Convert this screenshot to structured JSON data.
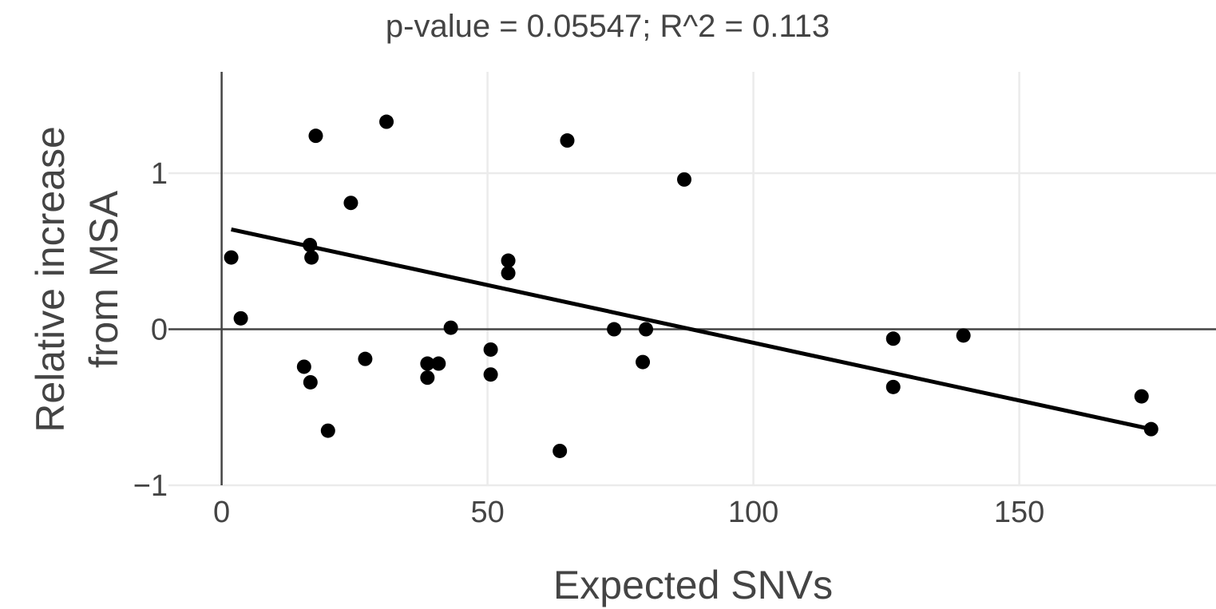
{
  "chart_data": {
    "type": "scatter",
    "title": "p-value = 0.05547; R^2 = 0.113",
    "xlabel": "Expected SNVs",
    "ylabel_lines": [
      "Relative increase",
      "from MSA"
    ],
    "xlim": [
      -10,
      187
    ],
    "ylim": [
      -1.0,
      1.65
    ],
    "x_ticks": [
      0,
      50,
      100,
      150
    ],
    "x_tick_labels": [
      "0",
      "50",
      "100",
      "150"
    ],
    "y_ticks": [
      -1,
      0,
      1
    ],
    "y_tick_labels": [
      "−1",
      "0",
      "1"
    ],
    "grid": true,
    "legend": "none",
    "colors": {
      "points": "#000000",
      "grid": "#ebebeb",
      "axis": "#444444",
      "fit": "#000000"
    },
    "points": [
      {
        "x": 1.8,
        "y": 0.46
      },
      {
        "x": 3.6,
        "y": 0.07
      },
      {
        "x": 15.5,
        "y": -0.24
      },
      {
        "x": 16.6,
        "y": 0.54
      },
      {
        "x": 16.7,
        "y": -0.34
      },
      {
        "x": 16.9,
        "y": 0.46
      },
      {
        "x": 17.7,
        "y": 1.24
      },
      {
        "x": 20.0,
        "y": -0.65
      },
      {
        "x": 24.3,
        "y": 0.81
      },
      {
        "x": 27.0,
        "y": -0.19
      },
      {
        "x": 31.0,
        "y": 1.33
      },
      {
        "x": 38.7,
        "y": -0.22
      },
      {
        "x": 38.7,
        "y": -0.31
      },
      {
        "x": 40.8,
        "y": -0.22
      },
      {
        "x": 43.1,
        "y": 0.01
      },
      {
        "x": 50.6,
        "y": -0.13
      },
      {
        "x": 50.6,
        "y": -0.29
      },
      {
        "x": 53.9,
        "y": 0.44
      },
      {
        "x": 53.9,
        "y": 0.36
      },
      {
        "x": 63.6,
        "y": -0.78
      },
      {
        "x": 65.0,
        "y": 1.21
      },
      {
        "x": 73.8,
        "y": 0.0
      },
      {
        "x": 79.2,
        "y": -0.21
      },
      {
        "x": 79.8,
        "y": 0.0
      },
      {
        "x": 87.0,
        "y": 0.96
      },
      {
        "x": 126.3,
        "y": -0.06
      },
      {
        "x": 126.3,
        "y": -0.37
      },
      {
        "x": 139.5,
        "y": -0.04
      },
      {
        "x": 173.0,
        "y": -0.43
      },
      {
        "x": 174.8,
        "y": -0.64
      }
    ],
    "fit_line": {
      "x": [
        1.8,
        174.8
      ],
      "y": [
        0.64,
        -0.64
      ]
    }
  }
}
